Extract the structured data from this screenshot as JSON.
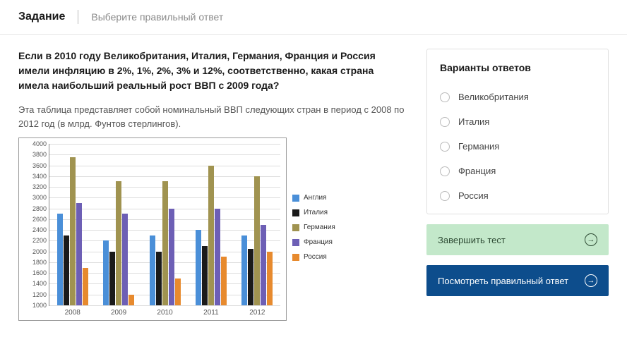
{
  "header": {
    "title": "Задание",
    "sub": "Выберите правильный ответ"
  },
  "question": "Если в 2010 году Великобритания, Италия, Германия, Франция и Россия имели инфляцию в 2%, 1%, 2%, 3% и 12%, соответственно, какая страна имела наибольший реальный рост ВВП с 2009 года?",
  "desc": "Эта таблица представляет собой номинальный ВВП следующих стран в период с 2008 по 2012 год (в млрд. Фунтов стерлингов).",
  "chart": {
    "type": "bar",
    "ylim": [
      1000,
      4000
    ],
    "ytick_step": 200,
    "categories": [
      "2008",
      "2009",
      "2010",
      "2011",
      "2012"
    ],
    "series": [
      {
        "name": "Англия",
        "color": "#4a8fd8",
        "values": [
          2700,
          2200,
          2300,
          2400,
          2300
        ]
      },
      {
        "name": "Италия",
        "color": "#1a1a1a",
        "values": [
          2300,
          2000,
          2000,
          2100,
          2050
        ]
      },
      {
        "name": "Германия",
        "color": "#a09350",
        "values": [
          3750,
          3300,
          3300,
          3600,
          3400
        ]
      },
      {
        "name": "Франция",
        "color": "#6d5fb5",
        "values": [
          2900,
          2700,
          2800,
          2800,
          2500
        ]
      },
      {
        "name": "Россия",
        "color": "#e78a2e",
        "values": [
          1700,
          1200,
          1500,
          1900,
          2000
        ]
      }
    ],
    "label_fontsize": 9,
    "background": "#ffffff",
    "grid_color": "#dddddd"
  },
  "answers": {
    "title": "Варианты ответов",
    "options": [
      "Великобритания",
      "Италия",
      "Германия",
      "Франция",
      "Россия"
    ]
  },
  "buttons": {
    "finish": "Завершить тест",
    "show_answer": "Посмотреть правильный ответ"
  }
}
